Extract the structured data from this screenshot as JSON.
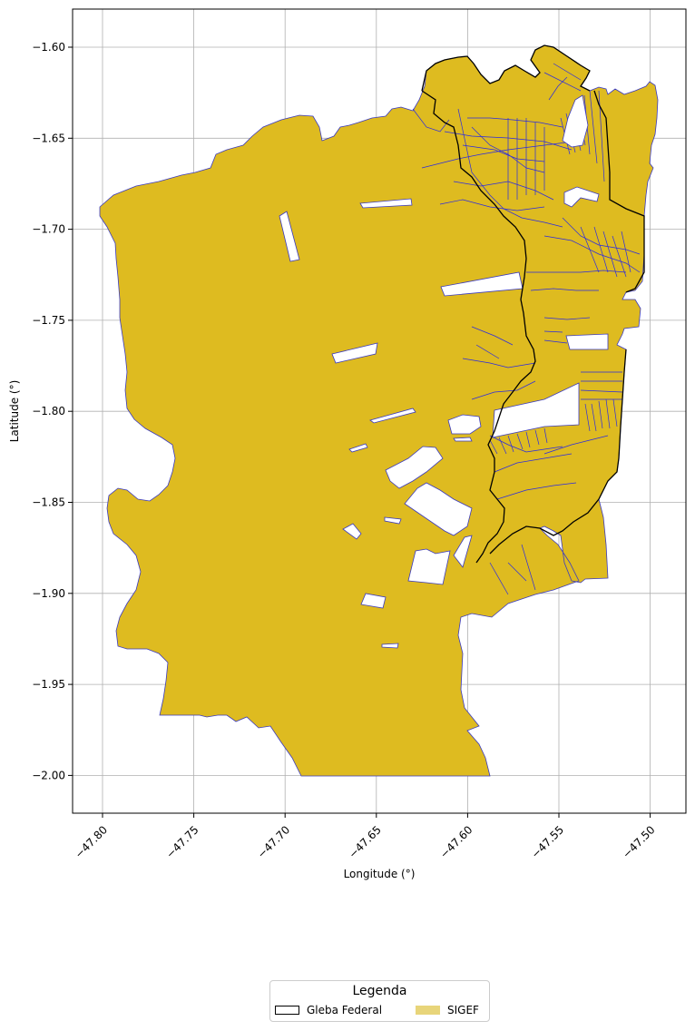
{
  "map": {
    "x_axis": {
      "label": "Longitude (°)",
      "ticks": [
        "−47.80",
        "−47.75",
        "−47.70",
        "−47.65",
        "−47.60",
        "−47.55",
        "−47.50"
      ],
      "values": [
        -47.8,
        -47.75,
        -47.7,
        -47.65,
        -47.6,
        -47.55,
        -47.5
      ]
    },
    "y_axis": {
      "label": "Latitude (°)",
      "ticks": [
        "−1.60",
        "−1.65",
        "−1.70",
        "−1.75",
        "−1.80",
        "−1.85",
        "−1.90",
        "−1.95",
        "−2.00"
      ],
      "values": [
        -1.6,
        -1.65,
        -1.7,
        -1.75,
        -1.8,
        -1.85,
        -1.9,
        -1.95,
        -2.0
      ]
    },
    "grid": true,
    "colors": {
      "sigef_fill": "#debb20",
      "sigef_edge": "#2a2ab8",
      "gleba_edge": "#000000",
      "grid": "#b0b0b0"
    }
  },
  "legend": {
    "title": "Legenda",
    "items": [
      {
        "label": "Gleba Federal"
      },
      {
        "label": "SIGEF"
      }
    ]
  }
}
